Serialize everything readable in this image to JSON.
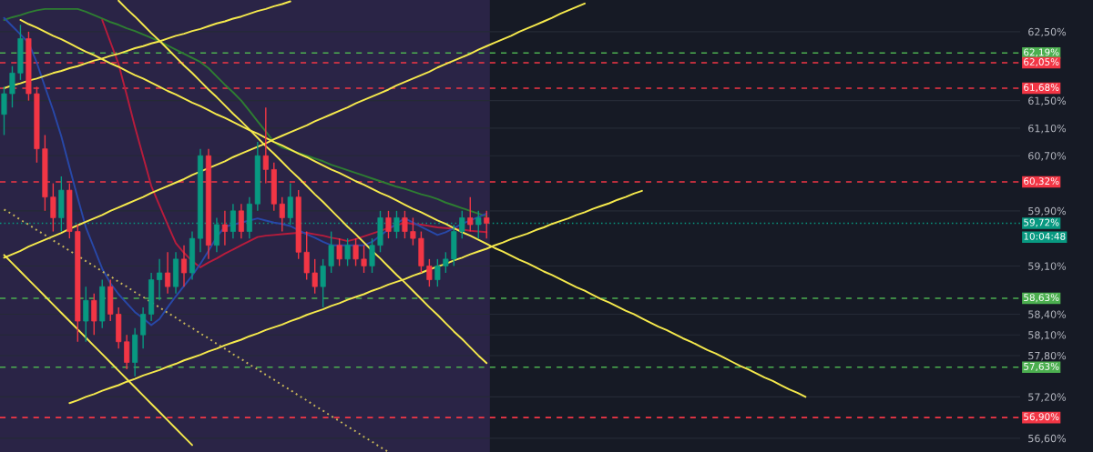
{
  "chart_data": {
    "type": "candlestick",
    "categories": [
      null,
      null,
      null,
      null,
      null,
      null,
      null,
      null,
      null,
      null,
      null,
      null,
      null,
      null,
      null,
      null,
      null,
      null,
      null,
      null,
      null,
      null,
      null,
      null,
      null,
      null,
      null,
      null,
      null,
      null,
      null,
      null,
      null,
      null,
      null,
      null,
      null,
      null,
      null,
      null,
      null,
      null,
      null,
      null,
      null,
      null,
      null,
      null,
      null,
      null,
      null,
      null,
      null,
      null,
      null,
      null,
      null,
      null,
      null,
      null,
      null,
      null,
      null,
      null,
      null,
      null,
      null,
      null,
      null,
      null,
      null,
      null,
      null,
      null,
      null,
      null,
      null,
      null,
      null,
      null,
      null,
      null,
      null,
      null,
      null,
      null,
      null,
      null,
      null,
      null,
      null,
      null,
      null,
      null,
      null,
      null,
      null,
      null,
      null
    ],
    "ohlc": [
      [
        61.3,
        61.7,
        61.0,
        61.6
      ],
      [
        61.6,
        62.0,
        61.4,
        61.9
      ],
      [
        61.9,
        62.6,
        61.8,
        62.4
      ],
      [
        62.4,
        62.5,
        61.5,
        61.6
      ],
      [
        61.6,
        61.7,
        60.6,
        60.8
      ],
      [
        60.8,
        61.0,
        59.9,
        60.1
      ],
      [
        60.1,
        60.3,
        59.6,
        59.8
      ],
      [
        59.8,
        60.4,
        59.6,
        60.2
      ],
      [
        60.2,
        60.3,
        59.5,
        59.6
      ],
      [
        59.6,
        59.7,
        58.0,
        58.3
      ],
      [
        58.3,
        58.8,
        58.0,
        58.6
      ],
      [
        58.6,
        58.7,
        58.1,
        58.3
      ],
      [
        58.3,
        58.9,
        58.2,
        58.8
      ],
      [
        58.8,
        58.9,
        58.3,
        58.4
      ],
      [
        58.4,
        58.5,
        57.9,
        58.0
      ],
      [
        58.0,
        58.1,
        57.6,
        57.7
      ],
      [
        57.7,
        58.2,
        57.5,
        58.1
      ],
      [
        58.1,
        58.5,
        57.9,
        58.4
      ],
      [
        58.4,
        59.0,
        58.3,
        58.9
      ],
      [
        58.9,
        59.2,
        58.6,
        59.0
      ],
      [
        59.0,
        59.3,
        58.7,
        58.8
      ],
      [
        58.8,
        59.3,
        58.7,
        59.2
      ],
      [
        59.2,
        59.4,
        58.8,
        59.0
      ],
      [
        59.0,
        59.6,
        58.9,
        59.5
      ],
      [
        59.5,
        60.8,
        59.3,
        60.7
      ],
      [
        60.7,
        60.8,
        59.2,
        59.4
      ],
      [
        59.4,
        59.8,
        59.3,
        59.7
      ],
      [
        59.7,
        59.9,
        59.4,
        59.6
      ],
      [
        59.6,
        60.0,
        59.5,
        59.9
      ],
      [
        59.9,
        60.0,
        59.5,
        59.6
      ],
      [
        59.6,
        60.1,
        59.5,
        60.0
      ],
      [
        60.0,
        60.9,
        59.9,
        60.7
      ],
      [
        60.7,
        61.4,
        60.3,
        60.5
      ],
      [
        60.5,
        60.6,
        59.9,
        60.0
      ],
      [
        60.0,
        60.1,
        59.6,
        59.8
      ],
      [
        59.8,
        60.3,
        59.7,
        60.1
      ],
      [
        60.1,
        60.2,
        59.2,
        59.3
      ],
      [
        59.3,
        59.6,
        58.9,
        59.0
      ],
      [
        59.0,
        59.2,
        58.7,
        58.8
      ],
      [
        58.8,
        59.2,
        58.5,
        59.1
      ],
      [
        59.1,
        59.6,
        59.0,
        59.4
      ],
      [
        59.4,
        59.5,
        59.1,
        59.2
      ],
      [
        59.2,
        59.5,
        59.1,
        59.4
      ],
      [
        59.4,
        59.5,
        59.1,
        59.2
      ],
      [
        59.2,
        59.4,
        59.0,
        59.1
      ],
      [
        59.1,
        59.5,
        59.0,
        59.4
      ],
      [
        59.4,
        59.9,
        59.3,
        59.8
      ],
      [
        59.8,
        59.9,
        59.5,
        59.6
      ],
      [
        59.6,
        59.9,
        59.5,
        59.8
      ],
      [
        59.8,
        59.9,
        59.5,
        59.6
      ],
      [
        59.6,
        59.8,
        59.4,
        59.5
      ],
      [
        59.5,
        59.6,
        59.0,
        59.1
      ],
      [
        59.1,
        59.2,
        58.8,
        58.9
      ],
      [
        58.9,
        59.2,
        58.8,
        59.1
      ],
      [
        59.1,
        59.3,
        59.0,
        59.2
      ],
      [
        59.2,
        59.7,
        59.1,
        59.6
      ],
      [
        59.6,
        59.9,
        59.5,
        59.8
      ],
      [
        59.8,
        60.1,
        59.6,
        59.7
      ],
      [
        59.7,
        59.9,
        59.5,
        59.8
      ],
      [
        59.8,
        59.9,
        59.5,
        59.72
      ],
      null,
      null,
      null,
      null,
      null,
      null,
      null,
      null,
      null,
      null,
      null,
      null,
      null,
      null,
      null,
      null,
      null,
      null,
      null,
      null,
      null,
      null,
      null,
      null,
      null,
      null,
      null,
      null,
      null,
      null,
      null,
      null,
      null,
      null,
      null,
      null,
      null,
      null,
      null
    ],
    "colors": [
      "#089981",
      "#089981",
      "#089981",
      "#f23645",
      "#f23645",
      "#f23645",
      "#f23645",
      "#089981",
      "#f23645",
      "#f23645",
      "#089981",
      "#f23645",
      "#089981",
      "#f23645",
      "#f23645",
      "#f23645",
      "#089981",
      "#089981",
      "#089981",
      "#089981",
      "#f23645",
      "#089981",
      "#f23645",
      "#089981",
      "#089981",
      "#f23645",
      "#089981",
      "#f23645",
      "#089981",
      "#f23645",
      "#089981",
      "#089981",
      "#f23645",
      "#f23645",
      "#f23645",
      "#089981",
      "#f23645",
      "#f23645",
      "#f23645",
      "#089981",
      "#089981",
      "#f23645",
      "#089981",
      "#f23645",
      "#f23645",
      "#089981",
      "#089981",
      "#f23645",
      "#089981",
      "#f23645",
      "#f23645",
      "#f23645",
      "#f23645",
      "#089981",
      "#089981",
      "#089981",
      "#089981",
      "#f23645",
      "#089981",
      "#f23645",
      null,
      null,
      null,
      null,
      null,
      null,
      null,
      null,
      null,
      null,
      null,
      null,
      null,
      null,
      null,
      null,
      null,
      null,
      null,
      null,
      null,
      null,
      null,
      null,
      null,
      null,
      null,
      null,
      null,
      null,
      null,
      null,
      null,
      null,
      null,
      null,
      null,
      null,
      null
    ],
    "series": [
      {
        "type": "line",
        "color": "#2e7d32",
        "values": [
          62.67,
          62.71,
          62.74,
          62.78,
          62.81,
          62.83,
          62.83,
          62.83,
          62.83,
          62.83,
          62.79,
          62.74,
          62.69,
          62.64,
          62.6,
          62.55,
          62.51,
          62.46,
          62.41,
          62.36,
          62.3,
          62.24,
          62.18,
          62.12,
          62.06,
          61.97,
          61.85,
          61.73,
          61.62,
          61.5,
          61.35,
          61.2,
          61.05,
          60.9,
          60.82,
          60.78,
          60.74,
          60.7,
          60.66,
          60.62,
          60.57,
          60.53,
          60.49,
          60.45,
          60.41,
          60.37,
          60.33,
          60.29,
          60.25,
          60.22,
          60.18,
          60.14,
          60.11,
          60.07,
          60.02,
          59.98,
          59.94,
          59.9,
          59.86,
          59.82,
          null,
          null,
          null,
          null,
          null,
          null,
          null,
          null,
          null,
          null,
          null,
          null,
          null,
          null,
          null,
          null,
          null,
          null,
          null,
          null,
          null,
          null,
          null,
          null,
          null,
          null,
          null,
          null,
          null,
          null,
          null,
          null,
          null,
          null,
          null,
          null,
          null,
          null,
          null
        ]
      },
      {
        "type": "line",
        "color": "#b71c3c",
        "values": [
          null,
          null,
          null,
          null,
          null,
          null,
          null,
          null,
          null,
          null,
          null,
          null,
          62.67,
          62.35,
          62.03,
          61.58,
          61.12,
          60.69,
          60.26,
          59.98,
          59.7,
          59.43,
          59.29,
          59.17,
          59.08,
          59.15,
          59.21,
          59.28,
          59.34,
          59.4,
          59.46,
          59.52,
          59.54,
          59.55,
          59.56,
          59.57,
          59.58,
          59.58,
          59.56,
          59.54,
          59.51,
          59.49,
          59.46,
          59.49,
          59.53,
          59.57,
          59.61,
          59.65,
          59.69,
          59.73,
          59.71,
          59.7,
          59.68,
          59.66,
          59.65,
          59.64,
          59.63,
          59.61,
          59.6,
          59.59,
          null,
          null,
          null,
          null,
          null,
          null,
          null,
          null,
          null,
          null,
          null,
          null,
          null,
          null,
          null,
          null,
          null,
          null,
          null,
          null,
          null,
          null,
          null,
          null,
          null,
          null,
          null,
          null,
          null,
          null,
          null,
          null,
          null,
          null,
          null,
          null,
          null,
          null,
          null
        ]
      },
      {
        "type": "line",
        "color": "#2848a8",
        "values": [
          62.7,
          62.58,
          62.46,
          62.34,
          62.05,
          61.7,
          61.36,
          60.98,
          60.53,
          60.09,
          59.66,
          59.36,
          59.06,
          58.85,
          58.69,
          58.56,
          58.43,
          58.34,
          58.24,
          58.33,
          58.5,
          58.66,
          58.81,
          58.96,
          59.13,
          59.32,
          59.52,
          59.67,
          59.7,
          59.73,
          59.76,
          59.79,
          59.76,
          59.73,
          59.71,
          59.68,
          59.62,
          59.56,
          59.51,
          59.45,
          59.4,
          59.4,
          59.4,
          59.4,
          59.4,
          59.45,
          59.54,
          59.63,
          59.72,
          59.79,
          59.73,
          59.67,
          59.61,
          59.55,
          59.59,
          59.65,
          59.71,
          59.76,
          59.81,
          59.86,
          null,
          null,
          null,
          null,
          null,
          null,
          null,
          null,
          null,
          null,
          null,
          null,
          null,
          null,
          null,
          null,
          null,
          null,
          null,
          null,
          null,
          null,
          null,
          null,
          null,
          null,
          null,
          null,
          null,
          null,
          null,
          null,
          null,
          null,
          null,
          null,
          null,
          null,
          null
        ]
      },
      {
        "type": "line",
        "color": "#f5e94c",
        "values": [
          null,
          null,
          62.67,
          62.61,
          62.56,
          62.5,
          62.44,
          62.39,
          62.33,
          62.27,
          62.21,
          62.16,
          62.1,
          62.04,
          61.99,
          61.93,
          61.87,
          61.82,
          61.76,
          61.7,
          61.64,
          61.59,
          61.53,
          61.47,
          61.42,
          61.36,
          61.3,
          61.25,
          61.19,
          61.13,
          61.07,
          61.02,
          60.96,
          60.9,
          60.85,
          60.79,
          60.73,
          60.68,
          60.62,
          60.56,
          60.5,
          60.45,
          60.39,
          60.33,
          60.28,
          60.22,
          60.16,
          60.11,
          60.05,
          59.99,
          59.93,
          59.88,
          59.82,
          59.76,
          59.71,
          59.65,
          59.59,
          59.54,
          59.48,
          59.42,
          59.36,
          59.31,
          59.25,
          59.19,
          59.14,
          59.08,
          59.02,
          58.97,
          58.91,
          58.85,
          58.79,
          58.74,
          58.68,
          58.62,
          58.57,
          58.51,
          58.45,
          58.4,
          58.34,
          58.28,
          58.22,
          58.17,
          58.11,
          58.05,
          58.0,
          57.94,
          57.88,
          57.83,
          57.77,
          57.71,
          57.65,
          57.6,
          57.54,
          57.48,
          57.43,
          57.37,
          57.31,
          57.26,
          57.2
        ]
      },
      {
        "type": "line",
        "color": "#f5e94c",
        "values": [
          null,
          null,
          null,
          null,
          null,
          null,
          null,
          null,
          57.11,
          57.15,
          57.2,
          57.24,
          57.29,
          57.33,
          57.37,
          57.42,
          57.46,
          57.51,
          57.55,
          57.59,
          57.64,
          57.68,
          57.73,
          57.77,
          57.81,
          57.86,
          57.9,
          57.95,
          57.99,
          58.03,
          58.08,
          58.12,
          58.17,
          58.21,
          58.25,
          58.3,
          58.34,
          58.39,
          58.43,
          58.47,
          58.52,
          58.56,
          58.61,
          58.65,
          58.69,
          58.74,
          58.78,
          58.83,
          58.87,
          58.91,
          58.96,
          59.0,
          59.05,
          59.09,
          59.13,
          59.18,
          59.22,
          59.27,
          59.31,
          59.35,
          59.4,
          59.44,
          59.49,
          59.53,
          59.57,
          59.62,
          59.66,
          59.71,
          59.75,
          59.79,
          59.84,
          59.88,
          59.93,
          59.97,
          60.01,
          60.06,
          60.1,
          60.15,
          60.19,
          null,
          null,
          null,
          null,
          null,
          null,
          null,
          null,
          null,
          null,
          null,
          null,
          null,
          null,
          null,
          null,
          null,
          null,
          null,
          null
        ]
      },
      {
        "type": "line",
        "color": "#f5e94c",
        "values": [
          61.68,
          61.72,
          61.75,
          61.79,
          61.82,
          61.86,
          61.9,
          61.93,
          61.97,
          62.0,
          62.04,
          62.08,
          62.11,
          62.15,
          62.18,
          62.22,
          62.26,
          62.29,
          62.33,
          62.36,
          62.4,
          62.44,
          62.47,
          62.51,
          62.54,
          62.58,
          62.62,
          62.65,
          62.69,
          62.72,
          62.76,
          62.8,
          62.83,
          62.87,
          62.9,
          62.94,
          null,
          null,
          null,
          null,
          null,
          null,
          null,
          null,
          null,
          null,
          null,
          null,
          null,
          null,
          null,
          null,
          null,
          null,
          null,
          null,
          null,
          null,
          null,
          null,
          null,
          null,
          null,
          null,
          null,
          null,
          null,
          null,
          null,
          null,
          null,
          null,
          null,
          null,
          null,
          null,
          null,
          null,
          null,
          null,
          null,
          null,
          null,
          null,
          null,
          null,
          null,
          null,
          null,
          null,
          null,
          null,
          null,
          null,
          null,
          null,
          null,
          null,
          null
        ]
      },
      {
        "type": "line",
        "color": "#f5e94c",
        "values": [
          59.22,
          59.27,
          59.32,
          59.38,
          59.43,
          59.48,
          59.53,
          59.58,
          59.64,
          59.69,
          59.74,
          59.79,
          59.84,
          59.9,
          59.95,
          60.0,
          60.05,
          60.1,
          60.16,
          60.21,
          60.26,
          60.31,
          60.36,
          60.42,
          60.47,
          60.52,
          60.57,
          60.62,
          60.68,
          60.73,
          60.78,
          60.83,
          60.88,
          60.94,
          60.99,
          61.04,
          61.09,
          61.14,
          61.2,
          61.25,
          61.3,
          61.35,
          61.4,
          61.46,
          61.51,
          61.56,
          61.61,
          61.66,
          61.72,
          61.77,
          61.82,
          61.87,
          61.92,
          61.98,
          62.03,
          62.08,
          62.13,
          62.18,
          62.24,
          62.29,
          62.34,
          62.39,
          62.44,
          62.5,
          62.55,
          62.6,
          62.65,
          62.7,
          62.76,
          62.81,
          62.86,
          62.91,
          null,
          null,
          null,
          null,
          null,
          null,
          null,
          null,
          null,
          null,
          null,
          null,
          null,
          null,
          null,
          null,
          null,
          null,
          null,
          null,
          null,
          null,
          null,
          null,
          null,
          null,
          null
        ]
      },
      {
        "type": "line",
        "color": "#f5e94c",
        "values": [
          null,
          null,
          null,
          null,
          null,
          null,
          null,
          null,
          null,
          null,
          null,
          null,
          null,
          null,
          62.95,
          62.83,
          62.72,
          62.6,
          62.48,
          62.37,
          62.25,
          62.13,
          62.01,
          61.9,
          61.78,
          61.66,
          61.55,
          61.43,
          61.31,
          61.2,
          61.08,
          60.96,
          60.84,
          60.73,
          60.61,
          60.49,
          60.38,
          60.26,
          60.14,
          60.03,
          59.91,
          59.79,
          59.67,
          59.56,
          59.44,
          59.32,
          59.21,
          59.09,
          58.97,
          58.86,
          58.74,
          58.62,
          58.5,
          58.39,
          58.27,
          58.15,
          58.04,
          57.92,
          57.8,
          57.69,
          null,
          null,
          null,
          null,
          null,
          null,
          null,
          null,
          null,
          null,
          null,
          null,
          null,
          null,
          null,
          null,
          null,
          null,
          null,
          null,
          null,
          null,
          null,
          null,
          null,
          null,
          null,
          null,
          null,
          null,
          null,
          null,
          null,
          null,
          null,
          null,
          null,
          null,
          null
        ]
      },
      {
        "type": "line",
        "color": "#f5e94c",
        "values": [
          59.26,
          59.14,
          59.02,
          58.9,
          58.78,
          58.66,
          58.54,
          58.42,
          58.3,
          58.18,
          58.06,
          57.94,
          57.82,
          57.7,
          57.58,
          57.46,
          57.34,
          57.22,
          57.1,
          56.98,
          56.86,
          56.74,
          56.62,
          56.5,
          null,
          null,
          null,
          null,
          null,
          null,
          null,
          null,
          null,
          null,
          null,
          null,
          null,
          null,
          null,
          null,
          null,
          null,
          null,
          null,
          null,
          null,
          null,
          null,
          null,
          null,
          null,
          null,
          null,
          null,
          null,
          null,
          null,
          null,
          null,
          null,
          null,
          null,
          null,
          null,
          null,
          null,
          null,
          null,
          null,
          null,
          null,
          null,
          null,
          null,
          null,
          null,
          null,
          null,
          null,
          null,
          null,
          null,
          null,
          null,
          null,
          null,
          null,
          null,
          null,
          null,
          null,
          null,
          null,
          null,
          null,
          null,
          null,
          null,
          null
        ]
      },
      {
        "type": "line",
        "color": "#c9b75a",
        "line_style": "dotted",
        "values": [
          59.92,
          59.85,
          59.77,
          59.7,
          59.62,
          59.55,
          59.47,
          59.4,
          59.32,
          59.25,
          59.17,
          59.1,
          59.02,
          58.95,
          58.87,
          58.8,
          58.72,
          58.65,
          58.57,
          58.5,
          58.42,
          58.35,
          58.27,
          58.2,
          58.12,
          58.05,
          57.97,
          57.9,
          57.82,
          57.75,
          57.67,
          57.6,
          57.52,
          57.45,
          57.37,
          57.3,
          57.22,
          57.15,
          57.07,
          57.0,
          56.92,
          56.85,
          56.77,
          56.7,
          56.62,
          56.55,
          56.47,
          56.4,
          null,
          null,
          null,
          null,
          null,
          null,
          null,
          null,
          null,
          null,
          null,
          null,
          null,
          null,
          null,
          null,
          null,
          null,
          null,
          null,
          null,
          null,
          null,
          null,
          null,
          null,
          null,
          null,
          null,
          null,
          null,
          null,
          null,
          null,
          null,
          null,
          null,
          null,
          null,
          null,
          null,
          null,
          null,
          null,
          null,
          null,
          null,
          null,
          null,
          null,
          null
        ]
      }
    ],
    "ref_lines": [
      {
        "axis": "y",
        "value": 62.19,
        "label": "62,19%",
        "color": "#4caf50",
        "line_style": "dashed"
      },
      {
        "axis": "y",
        "value": 62.05,
        "label": "62,05%",
        "color": "#f23645",
        "line_style": "dashed"
      },
      {
        "axis": "y",
        "value": 61.68,
        "label": "61,68%",
        "color": "#f23645",
        "line_style": "dashed"
      },
      {
        "axis": "y",
        "value": 60.32,
        "label": "60,32%",
        "color": "#f23645",
        "line_style": "dashed"
      },
      {
        "axis": "y",
        "value": 58.63,
        "label": "58,63%",
        "color": "#4caf50",
        "line_style": "dashed"
      },
      {
        "axis": "y",
        "value": 57.63,
        "label": "57,63%",
        "color": "#4caf50",
        "line_style": "dashed"
      },
      {
        "axis": "y",
        "value": 56.9,
        "label": "56,90%",
        "color": "#f23645",
        "line_style": "dashed"
      },
      {
        "axis": "y",
        "value": 59.72,
        "label": "59,72%",
        "color": "#089981",
        "line_style": "dotted"
      }
    ],
    "annotations": [
      "10:04:48"
    ],
    "ylim": [
      56.4,
      62.96
    ],
    "yticks": [
      {
        "value": 62.5,
        "label": "62,50%"
      },
      {
        "value": 61.5,
        "label": "61,50%"
      },
      {
        "value": 61.1,
        "label": "61,10%"
      },
      {
        "value": 60.7,
        "label": "60,70%"
      },
      {
        "value": 59.9,
        "label": "59,90%"
      },
      {
        "value": 59.1,
        "label": "59,10%"
      },
      {
        "value": 58.4,
        "label": "58,40%"
      },
      {
        "value": 58.1,
        "label": "58,10%"
      },
      {
        "value": 57.8,
        "label": "57,80%"
      },
      {
        "value": 57.2,
        "label": "57,20%"
      },
      {
        "value": 56.6,
        "label": "56,60%"
      }
    ],
    "tick_labels": "y",
    "grid": "y"
  }
}
